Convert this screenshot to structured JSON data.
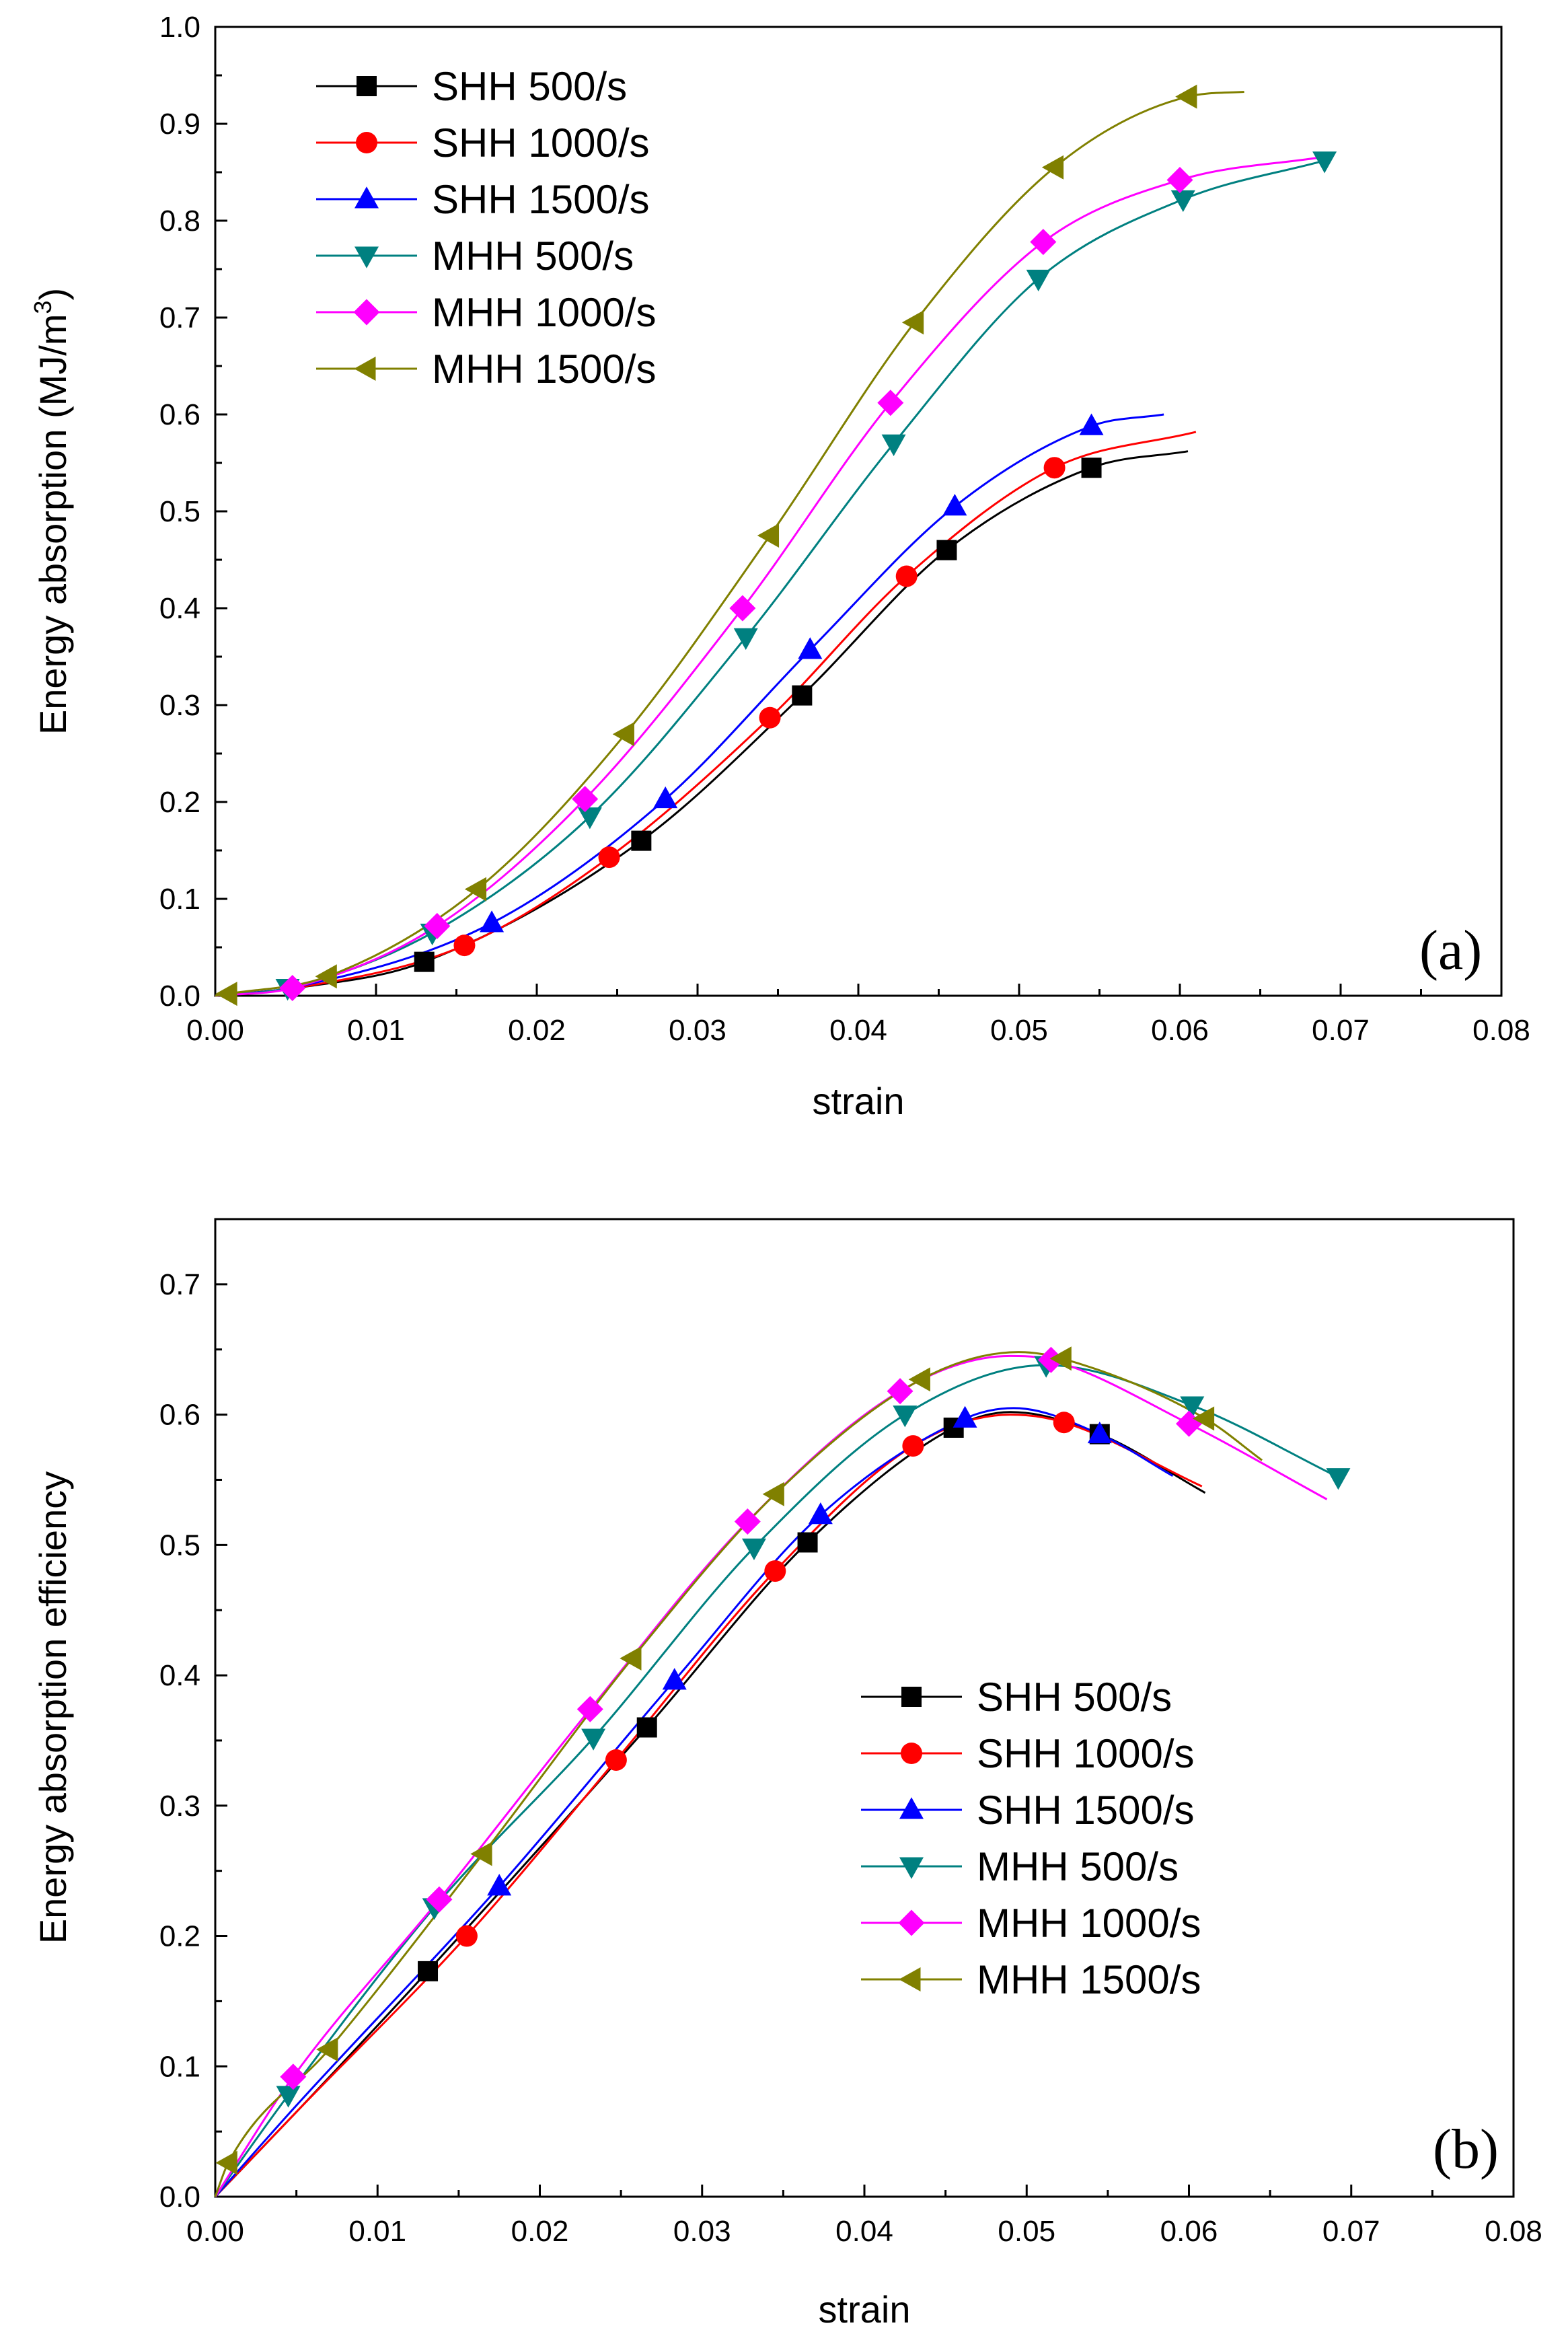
{
  "chart_data": [
    {
      "type": "line",
      "id": "a",
      "panel_label": "(a)",
      "xlabel": "strain",
      "ylabel": "Energy absorption (MJ/m",
      "ylabel_sup": "3",
      "ylabel_close": ")",
      "xlim": [
        0,
        0.08
      ],
      "ylim": [
        0,
        1.0
      ],
      "xticks": [
        "0.00",
        "0.01",
        "0.02",
        "0.03",
        "0.04",
        "0.05",
        "0.06",
        "0.07",
        "0.08"
      ],
      "yticks": [
        "0.0",
        "0.1",
        "0.2",
        "0.3",
        "0.4",
        "0.5",
        "0.6",
        "0.7",
        "0.8",
        "0.9",
        "1.0"
      ],
      "legend_position": "top-left",
      "series": [
        {
          "name": "SHH 500/s",
          "color": "#000000",
          "marker": "square",
          "x": [
            0.0,
            0.005,
            0.013,
            0.0265,
            0.0365,
            0.0455,
            0.0545,
            0.0605
          ],
          "y": [
            0.0,
            0.008,
            0.035,
            0.16,
            0.31,
            0.46,
            0.545,
            0.562
          ],
          "marker_x": [
            0.013,
            0.0265,
            0.0365,
            0.0455,
            0.0545
          ],
          "marker_y": [
            0.035,
            0.16,
            0.31,
            0.46,
            0.545
          ]
        },
        {
          "name": "SHH 1000/s",
          "color": "#ff0000",
          "marker": "circle",
          "x": [
            0.0,
            0.005,
            0.0155,
            0.0245,
            0.0345,
            0.043,
            0.0522,
            0.061
          ],
          "y": [
            0.0,
            0.008,
            0.052,
            0.143,
            0.287,
            0.433,
            0.545,
            0.582
          ],
          "marker_x": [
            0.0155,
            0.0245,
            0.0345,
            0.043,
            0.0522
          ],
          "marker_y": [
            0.052,
            0.143,
            0.287,
            0.433,
            0.545
          ]
        },
        {
          "name": "SHH 1500/s",
          "color": "#0000ff",
          "marker": "triangle-up",
          "x": [
            0.0,
            0.005,
            0.0172,
            0.028,
            0.037,
            0.046,
            0.0545,
            0.059
          ],
          "y": [
            0.0,
            0.009,
            0.075,
            0.203,
            0.357,
            0.505,
            0.588,
            0.6
          ],
          "marker_x": [
            0.0172,
            0.028,
            0.037,
            0.046,
            0.0545
          ],
          "marker_y": [
            0.075,
            0.203,
            0.357,
            0.505,
            0.588
          ]
        },
        {
          "name": "MHH 500/s",
          "color": "#008080",
          "marker": "triangle-down",
          "x": [
            0.0,
            0.0045,
            0.0135,
            0.0233,
            0.033,
            0.0422,
            0.0512,
            0.0602,
            0.069
          ],
          "y": [
            0.0,
            0.008,
            0.065,
            0.185,
            0.37,
            0.57,
            0.74,
            0.822,
            0.862
          ],
          "marker_x": [
            0.0045,
            0.0135,
            0.0233,
            0.033,
            0.0422,
            0.0512,
            0.0602,
            0.069
          ],
          "marker_y": [
            0.008,
            0.065,
            0.185,
            0.37,
            0.57,
            0.74,
            0.822,
            0.862
          ]
        },
        {
          "name": "MHH 1000/s",
          "color": "#ff00ff",
          "marker": "diamond",
          "x": [
            0.0,
            0.0048,
            0.0138,
            0.023,
            0.0328,
            0.042,
            0.0515,
            0.06,
            0.069
          ],
          "y": [
            0.0,
            0.008,
            0.072,
            0.203,
            0.4,
            0.612,
            0.778,
            0.842,
            0.866
          ],
          "marker_x": [
            0.0048,
            0.0138,
            0.023,
            0.0328,
            0.042,
            0.0515,
            0.06
          ],
          "marker_y": [
            0.008,
            0.072,
            0.203,
            0.4,
            0.612,
            0.778,
            0.842
          ]
        },
        {
          "name": "MHH 1500/s",
          "color": "#808000",
          "marker": "triangle-left",
          "x": [
            0.0,
            0.0008,
            0.007,
            0.0163,
            0.0255,
            0.0345,
            0.0435,
            0.0522,
            0.0605,
            0.064
          ],
          "y": [
            0.0,
            0.002,
            0.02,
            0.11,
            0.27,
            0.475,
            0.695,
            0.855,
            0.928,
            0.933
          ],
          "marker_x": [
            0.0008,
            0.007,
            0.0163,
            0.0255,
            0.0345,
            0.0435,
            0.0522,
            0.0605
          ],
          "marker_y": [
            0.002,
            0.02,
            0.11,
            0.27,
            0.475,
            0.695,
            0.855,
            0.928
          ]
        }
      ]
    },
    {
      "type": "line",
      "id": "b",
      "panel_label": "(b)",
      "xlabel": "strain",
      "ylabel": "Energy absorption efficiency",
      "xlim": [
        0,
        0.08
      ],
      "ylim": [
        0,
        0.75
      ],
      "xticks": [
        "0.00",
        "0.01",
        "0.02",
        "0.03",
        "0.04",
        "0.05",
        "0.06",
        "0.07",
        "0.08"
      ],
      "yticks": [
        "0.0",
        "0.1",
        "0.2",
        "0.3",
        "0.4",
        "0.5",
        "0.6",
        "0.7"
      ],
      "legend_position": "center-right",
      "series": [
        {
          "name": "SHH 500/s",
          "color": "#000000",
          "marker": "square",
          "x": [
            0.0,
            0.005,
            0.0131,
            0.0266,
            0.0365,
            0.0455,
            0.049,
            0.0545,
            0.061
          ],
          "y": [
            0.0,
            0.065,
            0.173,
            0.36,
            0.502,
            0.59,
            0.602,
            0.585,
            0.54
          ],
          "marker_x": [
            0.0131,
            0.0266,
            0.0365,
            0.0455,
            0.0545
          ],
          "marker_y": [
            0.173,
            0.36,
            0.502,
            0.59,
            0.585
          ]
        },
        {
          "name": "SHH 1000/s",
          "color": "#ff0000",
          "marker": "circle",
          "x": [
            0.0,
            0.005,
            0.0155,
            0.0247,
            0.0345,
            0.043,
            0.049,
            0.0523,
            0.0608
          ],
          "y": [
            0.0,
            0.065,
            0.2,
            0.335,
            0.48,
            0.576,
            0.6,
            0.594,
            0.545
          ],
          "marker_x": [
            0.0155,
            0.0247,
            0.0345,
            0.043,
            0.0523
          ],
          "marker_y": [
            0.2,
            0.335,
            0.48,
            0.576,
            0.594
          ]
        },
        {
          "name": "SHH 1500/s",
          "color": "#0000ff",
          "marker": "triangle-up",
          "x": [
            0.0,
            0.005,
            0.0175,
            0.0283,
            0.0373,
            0.0462,
            0.0492,
            0.0545,
            0.059
          ],
          "y": [
            0.0,
            0.07,
            0.238,
            0.396,
            0.523,
            0.597,
            0.605,
            0.585,
            0.553
          ],
          "marker_x": [
            0.0175,
            0.0283,
            0.0373,
            0.0462,
            0.0545
          ],
          "marker_y": [
            0.238,
            0.396,
            0.523,
            0.597,
            0.585
          ]
        },
        {
          "name": "MHH 500/s",
          "color": "#008080",
          "marker": "triangle-down",
          "x": [
            0.0,
            0.0045,
            0.0135,
            0.0233,
            0.0332,
            0.0425,
            0.0512,
            0.0602,
            0.0692
          ],
          "y": [
            0.0,
            0.078,
            0.222,
            0.352,
            0.498,
            0.6,
            0.638,
            0.607,
            0.552
          ],
          "marker_x": [
            0.0045,
            0.0135,
            0.0233,
            0.0332,
            0.0425,
            0.0512,
            0.0602,
            0.0692
          ],
          "marker_y": [
            0.078,
            0.222,
            0.352,
            0.498,
            0.6,
            0.638,
            0.607,
            0.552
          ]
        },
        {
          "name": "MHH 1000/s",
          "color": "#ff00ff",
          "marker": "diamond",
          "x": [
            0.0,
            0.0048,
            0.0138,
            0.0231,
            0.0328,
            0.0422,
            0.049,
            0.0515,
            0.06,
            0.0685
          ],
          "y": [
            0.0,
            0.092,
            0.228,
            0.374,
            0.518,
            0.618,
            0.645,
            0.642,
            0.593,
            0.535
          ],
          "marker_x": [
            0.0048,
            0.0138,
            0.0231,
            0.0328,
            0.0422,
            0.0515,
            0.06
          ],
          "marker_y": [
            0.092,
            0.228,
            0.374,
            0.518,
            0.618,
            0.642,
            0.593
          ]
        },
        {
          "name": "MHH 1500/s",
          "color": "#808000",
          "marker": "triangle-left",
          "x": [
            0.0,
            0.0008,
            0.007,
            0.0165,
            0.0257,
            0.0345,
            0.0435,
            0.0495,
            0.0522,
            0.061,
            0.0645
          ],
          "y": [
            0.0,
            0.026,
            0.113,
            0.263,
            0.413,
            0.539,
            0.627,
            0.648,
            0.643,
            0.597,
            0.565
          ],
          "marker_x": [
            0.0008,
            0.007,
            0.0165,
            0.0257,
            0.0345,
            0.0435,
            0.0522,
            0.061
          ],
          "marker_y": [
            0.026,
            0.113,
            0.263,
            0.413,
            0.539,
            0.627,
            0.643,
            0.597
          ]
        }
      ]
    }
  ]
}
